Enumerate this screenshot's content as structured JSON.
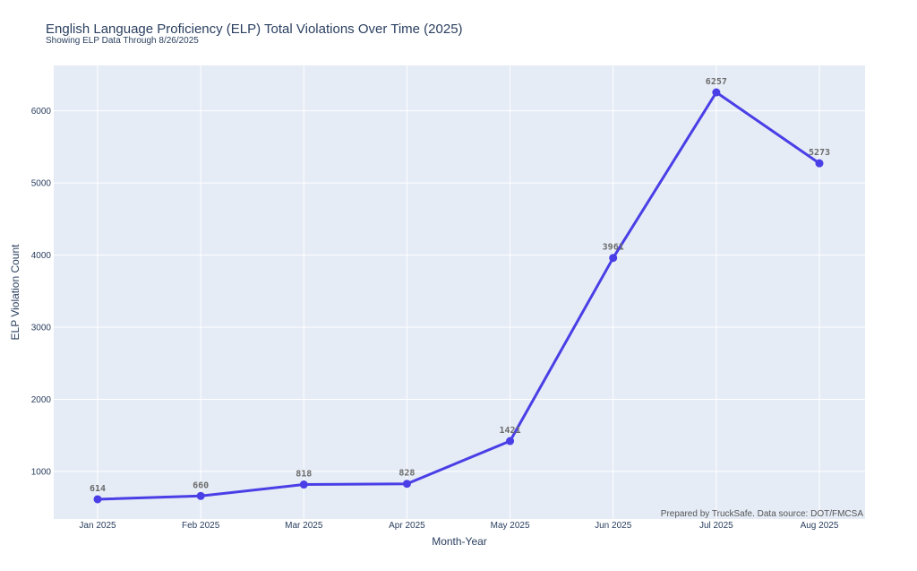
{
  "chart_data": {
    "type": "line",
    "title": "English Language Proficiency (ELP) Total Violations Over Time (2025)",
    "subtitle": "Showing ELP Data Through 8/26/2025",
    "xlabel": "Month-Year",
    "ylabel": "ELP Violation Count",
    "categories": [
      "Jan 2025",
      "Feb 2025",
      "Mar 2025",
      "Apr 2025",
      "May 2025",
      "Jun 2025",
      "Jul 2025",
      "Aug 2025"
    ],
    "series": [
      {
        "values": [
          614,
          660,
          818,
          828,
          1421,
          3961,
          6257,
          5273
        ],
        "color": "#4a3ee6"
      }
    ],
    "data_labels": [
      "614",
      "660",
      "818",
      "828",
      "1421",
      "3961",
      "6257",
      "5273"
    ],
    "yticks": [
      1000,
      2000,
      3000,
      4000,
      5000,
      6000
    ],
    "ytick_labels": [
      "1000",
      "2000",
      "3000",
      "4000",
      "5000",
      "6000"
    ],
    "ylim": [
      340,
      6630
    ],
    "grid": true,
    "plot_bg": "#e5ecf6",
    "annotation": "Prepared by TruckSafe. Data source: DOT/FMCSA"
  }
}
